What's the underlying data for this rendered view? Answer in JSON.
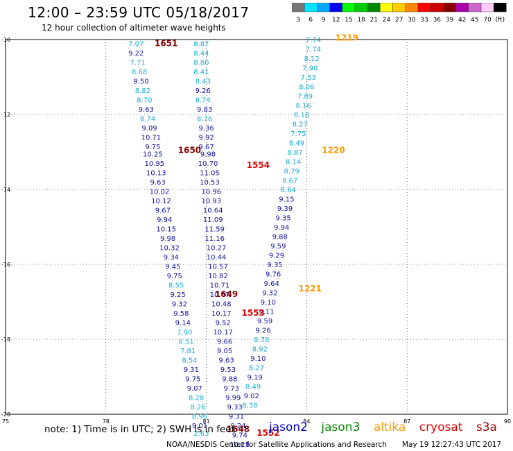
{
  "header": {
    "title": "12:00 – 23:59 UTC 05/18/2017",
    "subtitle": "12 hour collection of altimeter wave heights"
  },
  "colorbar": {
    "labels": [
      "3",
      "6",
      "9",
      "12",
      "15",
      "18",
      "21",
      "24",
      "27",
      "30",
      "33",
      "36",
      "39",
      "42",
      "45",
      "70",
      "(ft)"
    ],
    "colors": [
      "#777777",
      "#00e5ff",
      "#00aaff",
      "#0000ee",
      "#00ff00",
      "#00cc00",
      "#008800",
      "#ffff00",
      "#ffcc00",
      "#ff8800",
      "#ff0000",
      "#cc0000",
      "#880000",
      "#aa00aa",
      "#cc66cc",
      "#ffccff",
      "#000000"
    ]
  },
  "colors": {
    "cyan": "#17a9d6",
    "blue": "#1010a0",
    "jason2": "#0000cc",
    "jason3": "#008800",
    "altika": "#ff9900",
    "cryosat": "#dd0000",
    "s3a": "#990000",
    "time_dark": "#880000",
    "time_red": "#dd0000",
    "time_orange": "#ff9900"
  },
  "chart_data": {
    "type": "scatter",
    "title": "12:00 – 23:59 UTC 05/18/2017",
    "subtitle": "12 hour collection of altimeter wave heights",
    "x_ticks": [
      "75",
      "78",
      "81",
      "84",
      "87",
      "90"
    ],
    "y_ticks": [
      "-10",
      "-12",
      "-14",
      "-16",
      "-18",
      "-20"
    ],
    "xlim": [
      75,
      90
    ],
    "ylim": [
      -20,
      -10
    ],
    "grid": true,
    "series": [
      {
        "name": "",
        "color": "mixed",
        "points": [
          {
            "x": 78.9,
            "y": -10.1,
            "v": "7.07",
            "c": "cyan"
          },
          {
            "x": 78.9,
            "y": -10.35,
            "v": "9.22",
            "c": "blue"
          },
          {
            "x": 78.95,
            "y": -10.6,
            "v": "7.71",
            "c": "cyan"
          },
          {
            "x": 79.0,
            "y": -10.85,
            "v": "8.68",
            "c": "cyan"
          },
          {
            "x": 79.05,
            "y": -11.1,
            "v": "9.50",
            "c": "blue"
          },
          {
            "x": 79.1,
            "y": -11.35,
            "v": "8.82",
            "c": "cyan"
          },
          {
            "x": 79.15,
            "y": -11.6,
            "v": "8.70",
            "c": "cyan"
          },
          {
            "x": 79.2,
            "y": -11.85,
            "v": "9.63",
            "c": "blue"
          },
          {
            "x": 79.25,
            "y": -12.1,
            "v": "8.74",
            "c": "cyan"
          },
          {
            "x": 79.3,
            "y": -12.35,
            "v": "9.09",
            "c": "blue"
          },
          {
            "x": 79.35,
            "y": -12.6,
            "v": "10.71",
            "c": "blue"
          },
          {
            "x": 79.4,
            "y": -12.85,
            "v": "9.75",
            "c": "blue"
          },
          {
            "x": 79.4,
            "y": -13.05,
            "v": "10.25",
            "c": "blue"
          },
          {
            "x": 79.45,
            "y": -13.3,
            "v": "10.95",
            "c": "blue"
          },
          {
            "x": 79.5,
            "y": -13.55,
            "v": "10.13",
            "c": "blue"
          },
          {
            "x": 79.55,
            "y": -13.8,
            "v": "9.63",
            "c": "blue"
          },
          {
            "x": 79.6,
            "y": -14.05,
            "v": "10.02",
            "c": "blue"
          },
          {
            "x": 79.65,
            "y": -14.3,
            "v": "10.12",
            "c": "blue"
          },
          {
            "x": 79.7,
            "y": -14.55,
            "v": "9.67",
            "c": "blue"
          },
          {
            "x": 79.75,
            "y": -14.8,
            "v": "9.94",
            "c": "blue"
          },
          {
            "x": 79.8,
            "y": -15.05,
            "v": "10.15",
            "c": "blue"
          },
          {
            "x": 79.85,
            "y": -15.3,
            "v": "9.98",
            "c": "blue"
          },
          {
            "x": 79.9,
            "y": -15.55,
            "v": "10.32",
            "c": "blue"
          },
          {
            "x": 79.95,
            "y": -15.8,
            "v": "9.34",
            "c": "blue"
          },
          {
            "x": 80.0,
            "y": -16.05,
            "v": "9.45",
            "c": "blue"
          },
          {
            "x": 80.05,
            "y": -16.3,
            "v": "9.75",
            "c": "blue"
          },
          {
            "x": 80.1,
            "y": -16.55,
            "v": "8.55",
            "c": "cyan"
          },
          {
            "x": 80.15,
            "y": -16.8,
            "v": "9.25",
            "c": "blue"
          },
          {
            "x": 80.2,
            "y": -17.05,
            "v": "9.32",
            "c": "blue"
          },
          {
            "x": 80.25,
            "y": -17.3,
            "v": "9.58",
            "c": "blue"
          },
          {
            "x": 80.3,
            "y": -17.55,
            "v": "9.14",
            "c": "blue"
          },
          {
            "x": 80.35,
            "y": -17.8,
            "v": "7.90",
            "c": "cyan"
          },
          {
            "x": 80.4,
            "y": -18.05,
            "v": "8.51",
            "c": "cyan"
          },
          {
            "x": 80.45,
            "y": -18.3,
            "v": "7.81",
            "c": "cyan"
          },
          {
            "x": 80.5,
            "y": -18.55,
            "v": "8.54",
            "c": "cyan"
          },
          {
            "x": 80.55,
            "y": -18.8,
            "v": "9.31",
            "c": "blue"
          },
          {
            "x": 80.6,
            "y": -19.05,
            "v": "9.75",
            "c": "blue"
          },
          {
            "x": 80.65,
            "y": -19.3,
            "v": "9.07",
            "c": "blue"
          },
          {
            "x": 80.7,
            "y": -19.55,
            "v": "8.28",
            "c": "cyan"
          },
          {
            "x": 80.75,
            "y": -19.8,
            "v": "8.26",
            "c": "cyan"
          },
          {
            "x": 80.8,
            "y": -20.05,
            "v": "8.96",
            "c": "cyan"
          },
          {
            "x": 80.8,
            "y": -20.3,
            "v": "9.01",
            "c": "blue"
          },
          {
            "x": 80.85,
            "y": -20.5,
            "v": "2.63",
            "c": "cyan"
          },
          {
            "x": 80.85,
            "y": -10.1,
            "v": "8.87",
            "c": "cyan"
          },
          {
            "x": 80.85,
            "y": -10.35,
            "v": "8.44",
            "c": "cyan"
          },
          {
            "x": 80.85,
            "y": -10.6,
            "v": "8.80",
            "c": "cyan"
          },
          {
            "x": 80.85,
            "y": -10.85,
            "v": "8.41",
            "c": "cyan"
          },
          {
            "x": 80.9,
            "y": -11.1,
            "v": "8.43",
            "c": "cyan"
          },
          {
            "x": 80.9,
            "y": -11.35,
            "v": "9.26",
            "c": "blue"
          },
          {
            "x": 80.9,
            "y": -11.6,
            "v": "8.74",
            "c": "cyan"
          },
          {
            "x": 80.95,
            "y": -11.85,
            "v": "9.83",
            "c": "blue"
          },
          {
            "x": 80.95,
            "y": -12.1,
            "v": "8.76",
            "c": "cyan"
          },
          {
            "x": 81.0,
            "y": -12.35,
            "v": "9.36",
            "c": "blue"
          },
          {
            "x": 81.0,
            "y": -12.6,
            "v": "9.92",
            "c": "blue"
          },
          {
            "x": 81.0,
            "y": -12.85,
            "v": "9.67",
            "c": "blue"
          },
          {
            "x": 81.05,
            "y": -13.05,
            "v": "9.98",
            "c": "blue"
          },
          {
            "x": 81.05,
            "y": -13.3,
            "v": "10.70",
            "c": "blue"
          },
          {
            "x": 81.1,
            "y": -13.55,
            "v": "11.05",
            "c": "blue"
          },
          {
            "x": 81.1,
            "y": -13.8,
            "v": "10.53",
            "c": "blue"
          },
          {
            "x": 81.15,
            "y": -14.05,
            "v": "10.96",
            "c": "blue"
          },
          {
            "x": 81.15,
            "y": -14.3,
            "v": "10.93",
            "c": "blue"
          },
          {
            "x": 81.2,
            "y": -14.55,
            "v": "10.64",
            "c": "blue"
          },
          {
            "x": 81.2,
            "y": -14.8,
            "v": "11.09",
            "c": "blue"
          },
          {
            "x": 81.25,
            "y": -15.05,
            "v": "11.59",
            "c": "blue"
          },
          {
            "x": 81.25,
            "y": -15.3,
            "v": "11.16",
            "c": "blue"
          },
          {
            "x": 81.3,
            "y": -15.55,
            "v": "10.27",
            "c": "blue"
          },
          {
            "x": 81.3,
            "y": -15.8,
            "v": "10.44",
            "c": "blue"
          },
          {
            "x": 81.35,
            "y": -16.05,
            "v": "10.57",
            "c": "blue"
          },
          {
            "x": 81.35,
            "y": -16.3,
            "v": "10.82",
            "c": "blue"
          },
          {
            "x": 81.4,
            "y": -16.55,
            "v": "10.71",
            "c": "blue"
          },
          {
            "x": 81.4,
            "y": -16.8,
            "v": "10.67",
            "c": "blue"
          },
          {
            "x": 81.45,
            "y": -17.05,
            "v": "10.48",
            "c": "blue"
          },
          {
            "x": 81.45,
            "y": -17.3,
            "v": "10.17",
            "c": "blue"
          },
          {
            "x": 81.5,
            "y": -17.55,
            "v": "9.52",
            "c": "blue"
          },
          {
            "x": 81.5,
            "y": -17.8,
            "v": "10.17",
            "c": "blue"
          },
          {
            "x": 81.55,
            "y": -18.05,
            "v": "9.66",
            "c": "blue"
          },
          {
            "x": 81.55,
            "y": -18.3,
            "v": "9.05",
            "c": "blue"
          },
          {
            "x": 81.6,
            "y": -18.55,
            "v": "9.63",
            "c": "blue"
          },
          {
            "x": 81.65,
            "y": -18.8,
            "v": "9.53",
            "c": "blue"
          },
          {
            "x": 81.7,
            "y": -19.05,
            "v": "9.88",
            "c": "blue"
          },
          {
            "x": 81.75,
            "y": -19.3,
            "v": "9.73",
            "c": "blue"
          },
          {
            "x": 81.8,
            "y": -19.55,
            "v": "9.99",
            "c": "blue"
          },
          {
            "x": 81.85,
            "y": -19.8,
            "v": "9.33",
            "c": "blue"
          },
          {
            "x": 81.9,
            "y": -20.05,
            "v": "9.31",
            "c": "blue"
          },
          {
            "x": 81.95,
            "y": -20.3,
            "v": "9.24",
            "c": "blue"
          },
          {
            "x": 82.0,
            "y": -20.55,
            "v": "9.74",
            "c": "blue"
          },
          {
            "x": 82.0,
            "y": -20.8,
            "v": "10.28",
            "c": "blue"
          },
          {
            "x": 84.2,
            "y": -10.0,
            "v": "7.74",
            "c": "cyan"
          },
          {
            "x": 84.2,
            "y": -10.25,
            "v": "7.74",
            "c": "cyan"
          },
          {
            "x": 84.15,
            "y": -10.5,
            "v": "8.12",
            "c": "cyan"
          },
          {
            "x": 84.1,
            "y": -10.75,
            "v": "7.90",
            "c": "cyan"
          },
          {
            "x": 84.05,
            "y": -11.0,
            "v": "7.53",
            "c": "cyan"
          },
          {
            "x": 84.0,
            "y": -11.25,
            "v": "8.06",
            "c": "cyan"
          },
          {
            "x": 83.95,
            "y": -11.5,
            "v": "7.89",
            "c": "cyan"
          },
          {
            "x": 83.9,
            "y": -11.75,
            "v": "8.16",
            "c": "cyan"
          },
          {
            "x": 83.85,
            "y": -12.0,
            "v": "8.18",
            "c": "cyan"
          },
          {
            "x": 83.8,
            "y": -12.25,
            "v": "8.27",
            "c": "cyan"
          },
          {
            "x": 83.75,
            "y": -12.5,
            "v": "7.75",
            "c": "cyan"
          },
          {
            "x": 83.7,
            "y": -12.75,
            "v": "8.49",
            "c": "cyan"
          },
          {
            "x": 83.65,
            "y": -13.0,
            "v": "8.87",
            "c": "cyan"
          },
          {
            "x": 83.6,
            "y": -13.25,
            "v": "8.14",
            "c": "cyan"
          },
          {
            "x": 83.55,
            "y": -13.5,
            "v": "8.79",
            "c": "cyan"
          },
          {
            "x": 83.5,
            "y": -13.75,
            "v": "8.67",
            "c": "cyan"
          },
          {
            "x": 83.45,
            "y": -14.0,
            "v": "8.64",
            "c": "cyan"
          },
          {
            "x": 83.4,
            "y": -14.25,
            "v": "9.15",
            "c": "blue"
          },
          {
            "x": 83.35,
            "y": -14.5,
            "v": "9.39",
            "c": "blue"
          },
          {
            "x": 83.3,
            "y": -14.75,
            "v": "9.35",
            "c": "blue"
          },
          {
            "x": 83.25,
            "y": -15.0,
            "v": "9.94",
            "c": "blue"
          },
          {
            "x": 83.2,
            "y": -15.25,
            "v": "9.88",
            "c": "blue"
          },
          {
            "x": 83.15,
            "y": -15.5,
            "v": "9.59",
            "c": "blue"
          },
          {
            "x": 83.1,
            "y": -15.75,
            "v": "9.29",
            "c": "blue"
          },
          {
            "x": 83.05,
            "y": -16.0,
            "v": "9.35",
            "c": "blue"
          },
          {
            "x": 83.0,
            "y": -16.25,
            "v": "9.76",
            "c": "blue"
          },
          {
            "x": 82.95,
            "y": -16.5,
            "v": "9.64",
            "c": "blue"
          },
          {
            "x": 82.9,
            "y": -16.75,
            "v": "9.32",
            "c": "blue"
          },
          {
            "x": 82.85,
            "y": -17.0,
            "v": "9.10",
            "c": "blue"
          },
          {
            "x": 82.8,
            "y": -17.25,
            "v": "9.11",
            "c": "blue"
          },
          {
            "x": 82.75,
            "y": -17.5,
            "v": "9.59",
            "c": "blue"
          },
          {
            "x": 82.7,
            "y": -17.75,
            "v": "9.26",
            "c": "blue"
          },
          {
            "x": 82.65,
            "y": -18.0,
            "v": "8.78",
            "c": "cyan"
          },
          {
            "x": 82.6,
            "y": -18.25,
            "v": "8.92",
            "c": "cyan"
          },
          {
            "x": 82.55,
            "y": -18.5,
            "v": "9.10",
            "c": "blue"
          },
          {
            "x": 82.5,
            "y": -18.75,
            "v": "8.27",
            "c": "cyan"
          },
          {
            "x": 82.45,
            "y": -19.0,
            "v": "9.19",
            "c": "blue"
          },
          {
            "x": 82.4,
            "y": -19.25,
            "v": "8.49",
            "c": "cyan"
          },
          {
            "x": 82.35,
            "y": -19.5,
            "v": "9.02",
            "c": "blue"
          },
          {
            "x": 82.3,
            "y": -19.75,
            "v": "8.38",
            "c": "cyan"
          }
        ]
      }
    ],
    "time_labels": [
      {
        "x": 79.8,
        "y": -10.1,
        "v": "1651",
        "c": "time_dark"
      },
      {
        "x": 80.5,
        "y": -12.95,
        "v": "1650",
        "c": "time_dark"
      },
      {
        "x": 81.6,
        "y": -16.8,
        "v": "1649",
        "c": "time_dark"
      },
      {
        "x": 81.95,
        "y": -20.4,
        "v": "1648",
        "c": "time_dark"
      },
      {
        "x": 82.55,
        "y": -13.35,
        "v": "1554",
        "c": "time_red"
      },
      {
        "x": 82.4,
        "y": -17.3,
        "v": "1553",
        "c": "time_red"
      },
      {
        "x": 82.85,
        "y": -20.5,
        "v": "1552",
        "c": "time_red"
      },
      {
        "x": 85.2,
        "y": -9.95,
        "v": "1219",
        "c": "time_orange"
      },
      {
        "x": 84.8,
        "y": -12.95,
        "v": "1220",
        "c": "time_orange"
      },
      {
        "x": 84.1,
        "y": -16.65,
        "v": "1221",
        "c": "time_orange"
      }
    ]
  },
  "footer": {
    "note": "note: 1) Time is in UTC; 2) SWH is in feet",
    "legend": [
      {
        "label": "jason2",
        "color_key": "jason2"
      },
      {
        "label": "jason3",
        "color_key": "jason3"
      },
      {
        "label": "altika",
        "color_key": "altika"
      },
      {
        "label": "cryosat",
        "color_key": "cryosat"
      },
      {
        "label": "s3a",
        "color_key": "s3a"
      }
    ],
    "credit": "NOAA/NESDIS Center for Satellite Applications and Research",
    "timestamp": "May 19 12:27:43 UTC 2017"
  }
}
